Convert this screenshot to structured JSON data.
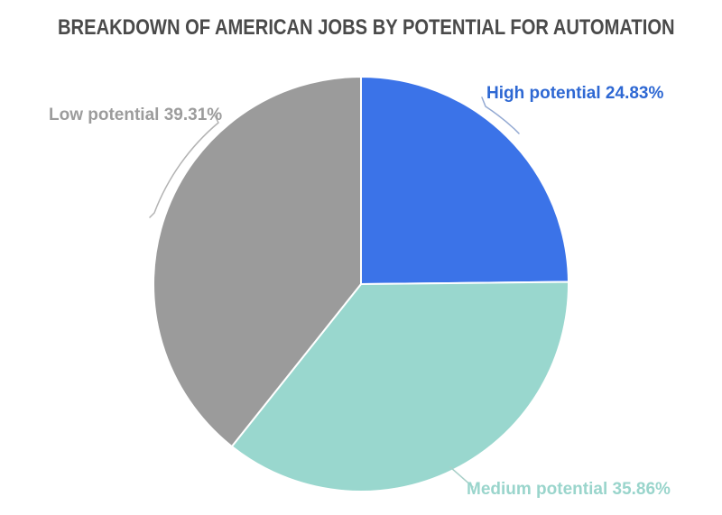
{
  "chart_data": {
    "type": "pie",
    "title": "BREAKDOWN OF AMERICAN JOBS BY POTENTIAL FOR AUTOMATION",
    "title_color": "#4a4a4a",
    "background_color": "#ffffff",
    "slice_divider_color": "#ffffff",
    "start_angle_deg": 0,
    "direction": "clockwise",
    "legend_position": "outside-labels",
    "slices": [
      {
        "label": "High potential",
        "value": 24.83,
        "display_label": "High potential 24.83%",
        "color": "#3b73e8",
        "label_color": "#2e68d3",
        "leader_color": "#93a9d2"
      },
      {
        "label": "Medium potential",
        "value": 35.86,
        "display_label": "Medium potential 35.86%",
        "color": "#99d7ce",
        "label_color": "#9ad5cc",
        "leader_color": "#a8cfc8"
      },
      {
        "label": "Low potential",
        "value": 39.31,
        "display_label": "Low potential 39.31%",
        "color": "#9b9b9b",
        "label_color": "#9c9c9c",
        "leader_color": "#b3b3b3"
      }
    ]
  }
}
